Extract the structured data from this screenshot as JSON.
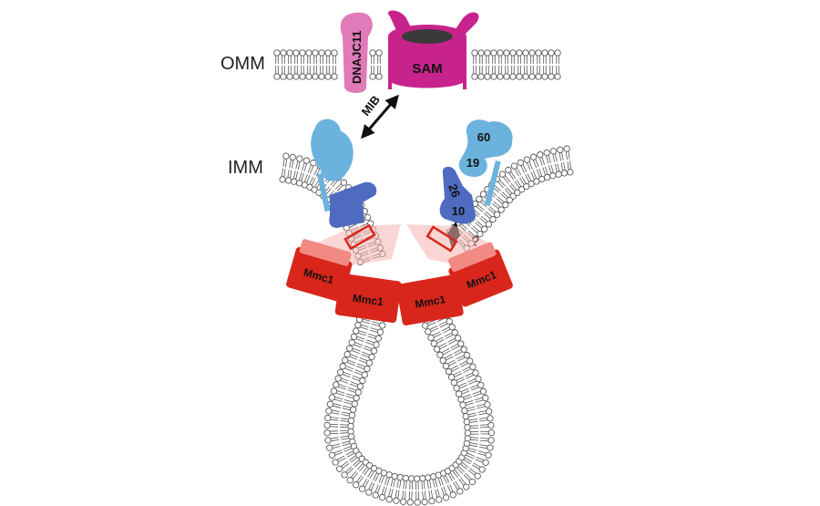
{
  "labels": {
    "omm": "OMM",
    "imm": "IMM",
    "dnajc11": "DNAJC11",
    "sam": "SAM",
    "mib": "MIB",
    "sub_60": "60",
    "sub_19": "19",
    "sub_26": "26",
    "sub_10": "10",
    "question": "?",
    "mmc1": "Mmc1"
  },
  "colors": {
    "magenta": "#C8238C",
    "pink": "#E07AB8",
    "light_blue": "#6BB3DD",
    "mid_blue": "#4E6BBF",
    "red": "#D9261C",
    "red_light": "#F5B5B0",
    "lipid_head": "#ffffff",
    "lipid_stroke": "#555555"
  }
}
